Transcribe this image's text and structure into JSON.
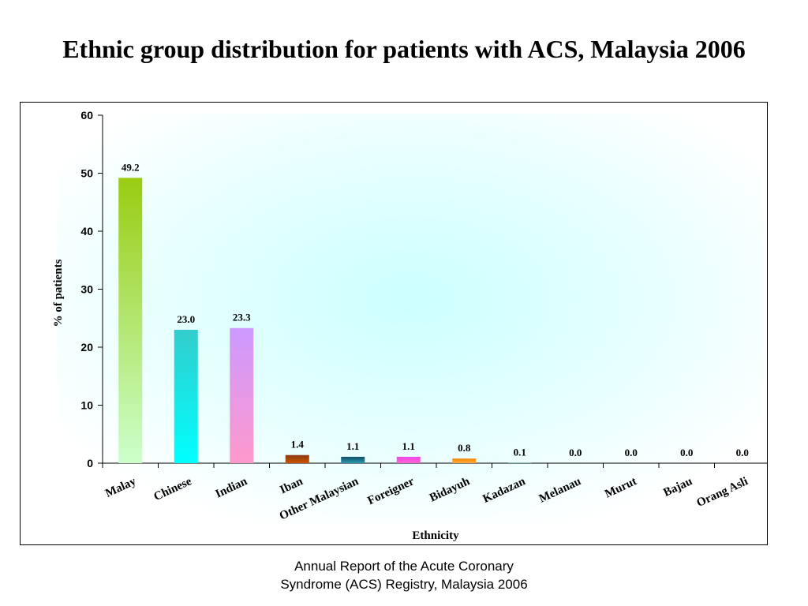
{
  "slide": {
    "title": "Ethnic group distribution for patients with ACS, Malaysia 2006",
    "caption_line1": "Annual Report of the Acute Coronary",
    "caption_line2": "Syndrome (ACS) Registry, Malaysia 2006"
  },
  "chart_data": {
    "type": "bar",
    "title": "",
    "xlabel": "Ethnicity",
    "ylabel": "% of patients",
    "ylim": [
      0,
      60
    ],
    "yticks": [
      0,
      10,
      20,
      30,
      40,
      50,
      60
    ],
    "categories": [
      "Malay",
      "Chinese",
      "Indian",
      "Iban",
      "Other Malaysian",
      "Foreigner",
      "Bidayuh",
      "Kadazan",
      "Melanau",
      "Murut",
      "Bajau",
      "Orang Asli"
    ],
    "values": [
      49.2,
      23.0,
      23.3,
      1.4,
      1.1,
      1.1,
      0.8,
      0.1,
      0.0,
      0.0,
      0.0,
      0.0
    ],
    "data_labels": [
      "49.2",
      "23.0",
      "23.3",
      "1.4",
      "1.1",
      "1.1",
      "0.8",
      "0.1",
      "0.0",
      "0.0",
      "0.0",
      "0.0"
    ],
    "bar_gradients": [
      [
        "#99cc11",
        "#ccffcc"
      ],
      [
        "#33cccc",
        "#00ffff"
      ],
      [
        "#cc99ff",
        "#ff99cc"
      ],
      [
        "#8b3a12",
        "#cc5500"
      ],
      [
        "#0f4f66",
        "#2a9ab0"
      ],
      [
        "#ee44ee",
        "#ff66cc"
      ],
      [
        "#ff8800",
        "#ffaa44"
      ],
      [
        "#66aaaa",
        "#66aaaa"
      ],
      [
        "#888888",
        "#888888"
      ],
      [
        "#888888",
        "#888888"
      ],
      [
        "#888888",
        "#888888"
      ],
      [
        "#888888",
        "#888888"
      ]
    ],
    "plot_background": "#ccffff",
    "grid": false,
    "legend": "none"
  }
}
